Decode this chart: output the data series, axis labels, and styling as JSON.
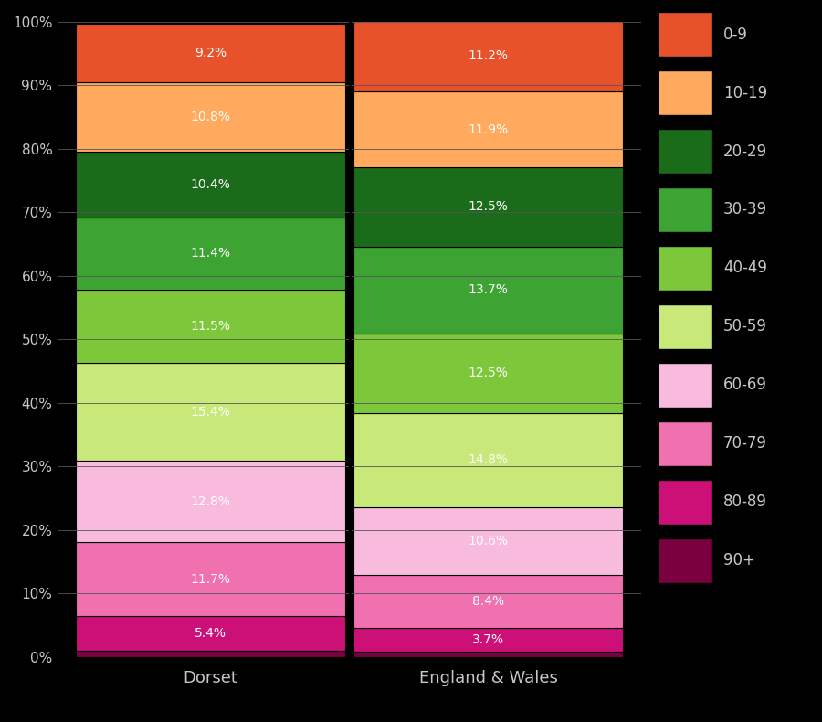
{
  "categories": [
    "Dorset",
    "England & Wales"
  ],
  "colors": {
    "0-9": "#E8522A",
    "10-19": "#FFAA5E",
    "20-29": "#1A6B1A",
    "30-39": "#3DA332",
    "40-49": "#7DC83A",
    "50-59": "#C8E87A",
    "60-69": "#F8BBDD",
    "70-79": "#F070B0",
    "80-89": "#CC1077",
    "90+": "#7A0040"
  },
  "values": {
    "Dorset": {
      "90+": 1.0,
      "80-89": 5.4,
      "70-79": 11.7,
      "60-69": 12.8,
      "50-59": 15.4,
      "40-49": 11.5,
      "30-39": 11.4,
      "20-29": 10.4,
      "10-19": 10.8,
      "0-9": 9.2
    },
    "England & Wales": {
      "90+": 0.9,
      "80-89": 3.7,
      "70-79": 8.4,
      "60-69": 10.6,
      "50-59": 14.8,
      "40-49": 12.5,
      "30-39": 13.7,
      "20-29": 12.5,
      "10-19": 11.9,
      "0-9": 11.2
    }
  },
  "label_values": {
    "Dorset": {
      "90+": null,
      "80-89": "5.4%",
      "70-79": "11.7%",
      "60-69": "12.8%",
      "50-59": "15.4%",
      "40-49": "11.5%",
      "30-39": "11.4%",
      "20-29": "10.4%",
      "10-19": "10.8%",
      "0-9": "9.2%"
    },
    "England & Wales": {
      "90+": null,
      "80-89": "3.7%",
      "70-79": "8.4%",
      "60-69": "10.6%",
      "50-59": "14.8%",
      "40-49": "12.5%",
      "30-39": "13.7%",
      "20-29": "12.5%",
      "10-19": "11.9%",
      "0-9": "11.2%"
    }
  },
  "stack_order": [
    "90+",
    "80-89",
    "70-79",
    "60-69",
    "50-59",
    "40-49",
    "30-39",
    "20-29",
    "10-19",
    "0-9"
  ],
  "legend_order": [
    "0-9",
    "10-19",
    "20-29",
    "30-39",
    "40-49",
    "50-59",
    "60-69",
    "70-79",
    "80-89",
    "90+"
  ],
  "background_color": "#000000",
  "text_color": "#C8C8C8",
  "bar_edge_color": "#000000",
  "ylim": [
    0,
    100
  ],
  "yticks": [
    0,
    10,
    20,
    30,
    40,
    50,
    60,
    70,
    80,
    90,
    100
  ],
  "ytick_labels": [
    "0%",
    "10%",
    "20%",
    "30%",
    "40%",
    "50%",
    "60%",
    "70%",
    "80%",
    "90%",
    "100%"
  ],
  "figsize": [
    9.0,
    7.9
  ],
  "dpi": 100,
  "bar_width": 0.97,
  "x_positions": [
    0,
    1
  ],
  "xlim": [
    -0.55,
    1.55
  ]
}
